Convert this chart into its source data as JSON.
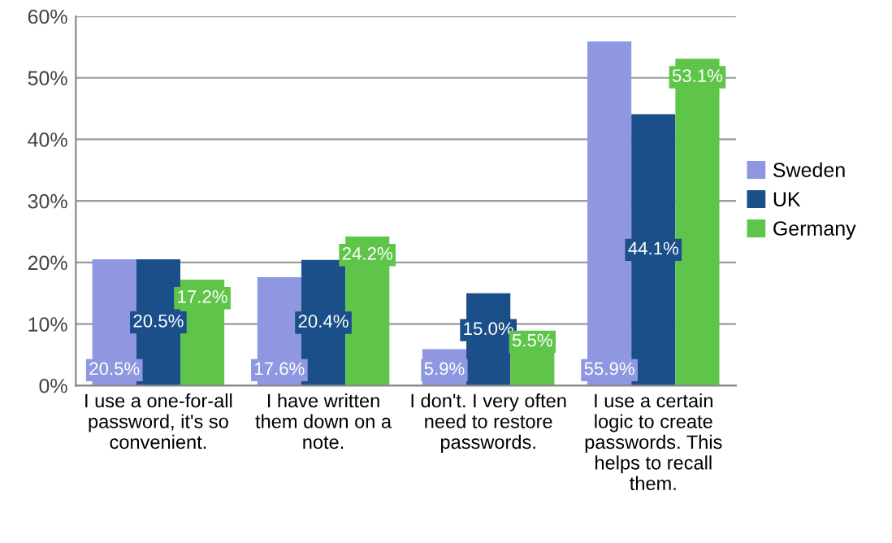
{
  "chart_data": {
    "type": "bar",
    "categories": [
      "I use a one-for-all\npassword, it's so\nconvenient.",
      "I have written\nthem down on a\nnote.",
      "I don't. I very often\nneed to restore\npasswords.",
      "I use a certain\nlogic to create\npasswords. This\nhelps to recall\nthem."
    ],
    "series": [
      {
        "name": "Sweden",
        "color": "#8e97e0",
        "values": [
          20.5,
          17.6,
          5.9,
          55.9
        ],
        "value_labels": [
          "20.5%",
          "17.6%",
          "5.9%",
          "55.9%"
        ]
      },
      {
        "name": "UK",
        "color": "#1b4f8a",
        "values": [
          20.5,
          20.4,
          15.0,
          44.1
        ],
        "value_labels": [
          "20.5%",
          "20.4%",
          "15.0%",
          "44.1%"
        ]
      },
      {
        "name": "Germany",
        "color": "#5fc54a",
        "values": [
          17.2,
          24.2,
          5.5,
          53.1
        ],
        "value_labels": [
          "17.2%",
          "24.2%",
          "5.5%",
          "53.1%"
        ]
      }
    ],
    "ylim": [
      0,
      60
    ],
    "yticks": [
      {
        "value": 0,
        "label": "0%"
      },
      {
        "value": 10,
        "label": "10%"
      },
      {
        "value": 20,
        "label": "20%"
      },
      {
        "value": 30,
        "label": "30%"
      },
      {
        "value": 40,
        "label": "40%"
      },
      {
        "value": 50,
        "label": "50%"
      },
      {
        "value": 60,
        "label": "60%"
      }
    ],
    "grid": "y",
    "legend": "right"
  }
}
